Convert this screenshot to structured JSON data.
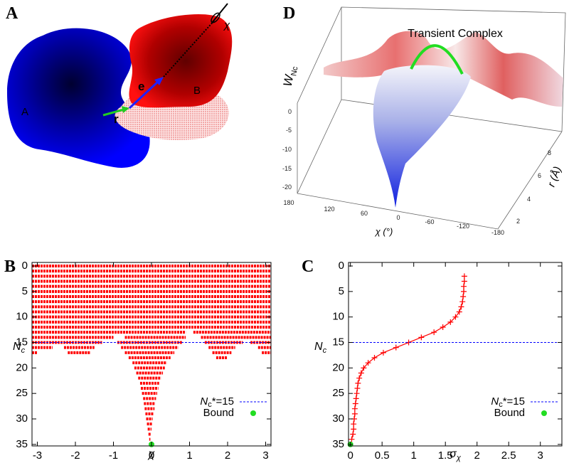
{
  "panel_a": {
    "letter": "A",
    "label_a": "A",
    "label_b": "B",
    "label_r": "r",
    "label_e": "e",
    "label_chi": "χ"
  },
  "panel_d": {
    "letter": "D",
    "title": "Transient Complex",
    "zlabel": "W",
    "zlabel_subscript": "Nc",
    "zticks": [
      "0",
      "-5",
      "-10",
      "-15",
      "-20"
    ],
    "xlabel": "χ (°)",
    "xticks": [
      "180",
      "120",
      "60",
      "0",
      "-60",
      "-120",
      "-180"
    ],
    "ylabel": "r (Å)",
    "yticks": [
      "2",
      "4",
      "6",
      "8"
    ]
  },
  "chart_data": [
    {
      "type": "interval",
      "panel_label": "B",
      "xlabel": "χ",
      "ylabel": "N",
      "ylabel_subscript": "c",
      "color": "#ff0000",
      "xlim": [
        -3.14,
        3.14
      ],
      "xticks": [
        -3,
        -2,
        -1,
        0,
        1,
        2,
        3
      ],
      "ylim": [
        35.3,
        -0.7
      ],
      "yticks": [
        0,
        5,
        10,
        15,
        20,
        25,
        30,
        35
      ],
      "rows": [
        {
          "nc": 0,
          "intervals": [
            [
              -3.14,
              3.14
            ]
          ]
        },
        {
          "nc": 1,
          "intervals": [
            [
              -3.14,
              3.14
            ]
          ]
        },
        {
          "nc": 2,
          "intervals": [
            [
              -3.14,
              3.14
            ]
          ]
        },
        {
          "nc": 3,
          "intervals": [
            [
              -3.14,
              3.14
            ]
          ]
        },
        {
          "nc": 4,
          "intervals": [
            [
              -3.14,
              3.14
            ]
          ]
        },
        {
          "nc": 5,
          "intervals": [
            [
              -3.14,
              3.14
            ]
          ]
        },
        {
          "nc": 6,
          "intervals": [
            [
              -3.14,
              3.14
            ]
          ]
        },
        {
          "nc": 7,
          "intervals": [
            [
              -3.14,
              3.14
            ]
          ]
        },
        {
          "nc": 8,
          "intervals": [
            [
              -3.14,
              3.14
            ]
          ]
        },
        {
          "nc": 9,
          "intervals": [
            [
              -3.14,
              3.14
            ]
          ]
        },
        {
          "nc": 10,
          "intervals": [
            [
              -3.14,
              3.14
            ]
          ]
        },
        {
          "nc": 11,
          "intervals": [
            [
              -3.14,
              3.14
            ]
          ]
        },
        {
          "nc": 12,
          "intervals": [
            [
              -3.14,
              3.14
            ]
          ]
        },
        {
          "nc": 13,
          "intervals": [
            [
              -3.14,
              0.9
            ],
            [
              1.1,
              3.14
            ]
          ]
        },
        {
          "nc": 14,
          "intervals": [
            [
              -3.14,
              -1.0
            ],
            [
              -0.7,
              0.9
            ],
            [
              1.3,
              3.14
            ]
          ]
        },
        {
          "nc": 15,
          "intervals": [
            [
              -3.14,
              -1.3
            ],
            [
              -0.9,
              0.8
            ],
            [
              1.4,
              2.4
            ],
            [
              2.6,
              3.14
            ]
          ]
        },
        {
          "nc": 16,
          "intervals": [
            [
              -3.14,
              -2.6
            ],
            [
              -2.3,
              -1.5
            ],
            [
              -0.8,
              0.7
            ],
            [
              1.5,
              2.2
            ],
            [
              2.8,
              3.14
            ]
          ]
        },
        {
          "nc": 17,
          "intervals": [
            [
              -3.14,
              -3.0
            ],
            [
              -2.2,
              -1.6
            ],
            [
              -0.7,
              0.6
            ],
            [
              1.6,
              2.1
            ],
            [
              2.9,
              3.14
            ]
          ]
        },
        {
          "nc": 18,
          "intervals": [
            [
              -0.6,
              0.5
            ],
            [
              1.7,
              2.0
            ]
          ]
        },
        {
          "nc": 19,
          "intervals": [
            [
              -0.5,
              0.4
            ]
          ]
        },
        {
          "nc": 20,
          "intervals": [
            [
              -0.45,
              0.35
            ]
          ]
        },
        {
          "nc": 21,
          "intervals": [
            [
              -0.4,
              0.3
            ]
          ]
        },
        {
          "nc": 22,
          "intervals": [
            [
              -0.35,
              0.25
            ]
          ]
        },
        {
          "nc": 23,
          "intervals": [
            [
              -0.3,
              0.2
            ]
          ]
        },
        {
          "nc": 24,
          "intervals": [
            [
              -0.28,
              0.18
            ]
          ]
        },
        {
          "nc": 25,
          "intervals": [
            [
              -0.25,
              0.15
            ]
          ]
        },
        {
          "nc": 26,
          "intervals": [
            [
              -0.22,
              0.12
            ]
          ]
        },
        {
          "nc": 27,
          "intervals": [
            [
              -0.2,
              0.1
            ]
          ]
        },
        {
          "nc": 28,
          "intervals": [
            [
              -0.18,
              0.08
            ]
          ]
        },
        {
          "nc": 29,
          "intervals": [
            [
              -0.16,
              0.05
            ]
          ]
        },
        {
          "nc": 30,
          "intervals": [
            [
              -0.14,
              0.03
            ]
          ]
        },
        {
          "nc": 31,
          "intervals": [
            [
              -0.12,
              0.02
            ]
          ]
        },
        {
          "nc": 32,
          "intervals": [
            [
              -0.1,
              0.0
            ]
          ]
        },
        {
          "nc": 33,
          "intervals": [
            [
              -0.08,
              -0.02
            ]
          ]
        },
        {
          "nc": 34,
          "intervals": [
            [
              -0.06,
              -0.03
            ]
          ]
        }
      ],
      "threshold": 15,
      "threshold_color": "#0000ff",
      "legend_label": [
        "N",
        "c",
        "*=15"
      ],
      "bound": {
        "x": 0,
        "y": 35
      },
      "bound_label": "Bound",
      "bound_color": "#22dd22",
      "legend": "lower right"
    },
    {
      "type": "line",
      "panel_label": "C",
      "xlabel": "σ",
      "xlabel_subscript": "χ",
      "ylabel": "N",
      "ylabel_subscript": "c",
      "xlim": [
        -0.03,
        3.34
      ],
      "xticks": [
        0,
        0.5,
        1,
        1.5,
        2,
        2.5,
        3
      ],
      "ylim": [
        35.3,
        -0.7
      ],
      "yticks": [
        0,
        5,
        10,
        15,
        20,
        25,
        30,
        35
      ],
      "x": [
        1.8,
        1.8,
        1.79,
        1.79,
        1.78,
        1.77,
        1.75,
        1.72,
        1.66,
        1.58,
        1.46,
        1.32,
        1.12,
        0.92,
        0.72,
        0.52,
        0.38,
        0.28,
        0.21,
        0.17,
        0.14,
        0.12,
        0.11,
        0.1,
        0.09,
        0.08,
        0.07,
        0.07,
        0.06,
        0.05,
        0.05,
        0.04,
        0.02
      ],
      "series": [
        {
          "color": "#ff0000",
          "marker": "+",
          "values": [
            2,
            3,
            4,
            5,
            6,
            7,
            8,
            9,
            10,
            11,
            12,
            13,
            14,
            15,
            16,
            17,
            18,
            19,
            20,
            21,
            22,
            23,
            24,
            25,
            26,
            27,
            28,
            29,
            30,
            31,
            32,
            33,
            34
          ]
        }
      ],
      "threshold": 15,
      "threshold_color": "#0000ff",
      "legend_label": [
        "N",
        "c",
        "*=15"
      ],
      "bound": {
        "x": 0,
        "y": 35
      },
      "bound_label": "Bound",
      "bound_color": "#22dd22",
      "legend": "lower right"
    }
  ]
}
